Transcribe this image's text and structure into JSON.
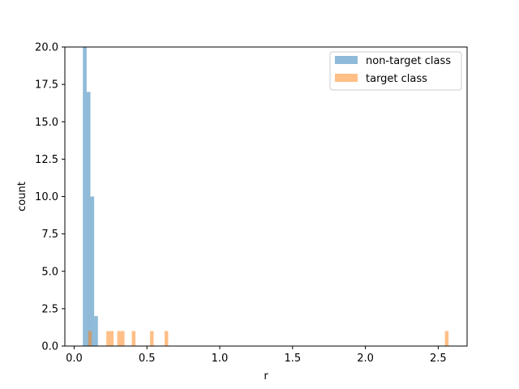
{
  "chart_data": {
    "type": "bar",
    "title": "",
    "xlabel": "r",
    "ylabel": "count",
    "xlim": [
      -0.0636,
      2.6983
    ],
    "ylim": [
      0,
      20
    ],
    "x_ticks": [
      0.0,
      0.5,
      1.0,
      1.5,
      2.0,
      2.5
    ],
    "x_tick_labels": [
      "0.0",
      "0.5",
      "1.0",
      "1.5",
      "2.0",
      "2.5"
    ],
    "y_ticks": [
      0,
      2.5,
      5,
      7.5,
      10,
      12.5,
      15,
      17.5,
      20
    ],
    "y_tick_labels": [
      "0.0",
      "2.5",
      "5.0",
      "7.5",
      "10.0",
      "12.5",
      "15.0",
      "17.5",
      "20.0"
    ],
    "grid": false,
    "legend": "top-right",
    "series": [
      {
        "name": "non-target class",
        "color": "#1f77b4",
        "opacity": 0.5,
        "bins": [
          {
            "x0": 0.06,
            "x1": 0.0859,
            "count": 20
          },
          {
            "x0": 0.0859,
            "x1": 0.1118,
            "count": 17
          },
          {
            "x0": 0.1118,
            "x1": 0.1376,
            "count": 10
          },
          {
            "x0": 0.1376,
            "x1": 0.1635,
            "count": 2
          }
        ]
      },
      {
        "name": "target class",
        "color": "#ff7f0e",
        "opacity": 0.5,
        "bins": [
          {
            "x0": 0.096,
            "x1": 0.121,
            "count": 1
          },
          {
            "x0": 0.221,
            "x1": 0.246,
            "count": 1
          },
          {
            "x0": 0.246,
            "x1": 0.271,
            "count": 1
          },
          {
            "x0": 0.296,
            "x1": 0.321,
            "count": 1
          },
          {
            "x0": 0.321,
            "x1": 0.346,
            "count": 1
          },
          {
            "x0": 0.396,
            "x1": 0.421,
            "count": 1
          },
          {
            "x0": 0.521,
            "x1": 0.546,
            "count": 1
          },
          {
            "x0": 0.621,
            "x1": 0.646,
            "count": 1
          },
          {
            "x0": 2.546,
            "x1": 2.571,
            "count": 1
          }
        ]
      }
    ]
  }
}
